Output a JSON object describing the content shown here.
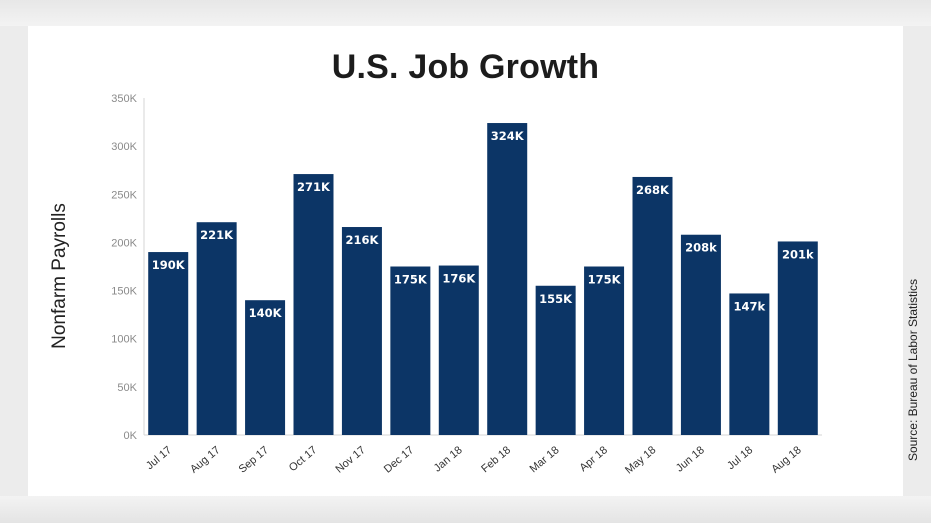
{
  "chart_data": {
    "type": "bar",
    "title": "U.S. Job Growth",
    "ylabel": "Nonfarm Payrolls",
    "xlabel": "",
    "source": "Source: Bureau of Labor Statistics",
    "categories": [
      "Jul 17",
      "Aug 17",
      "Sep 17",
      "Oct 17",
      "Nov 17",
      "Dec 17",
      "Jan 18",
      "Feb 18",
      "Mar 18",
      "Apr 18",
      "May 18",
      "Jun 18",
      "Jul 18",
      "Aug 18"
    ],
    "values": [
      190,
      221,
      140,
      271,
      216,
      175,
      176,
      324,
      155,
      175,
      268,
      208,
      147,
      201
    ],
    "data_labels": [
      "190K",
      "221K",
      "140K",
      "271K",
      "216K",
      "175K",
      "176K",
      "324K",
      "155K",
      "175K",
      "268K",
      "208k",
      "147k",
      "201k"
    ],
    "ylim": [
      0,
      350
    ],
    "yticks": [
      0,
      50,
      100,
      150,
      200,
      250,
      300,
      350
    ],
    "ytick_labels": [
      "0K",
      "50K",
      "100K",
      "150K",
      "200K",
      "250K",
      "300K",
      "350K"
    ],
    "grid": false,
    "bar_color": "#0c3566"
  }
}
